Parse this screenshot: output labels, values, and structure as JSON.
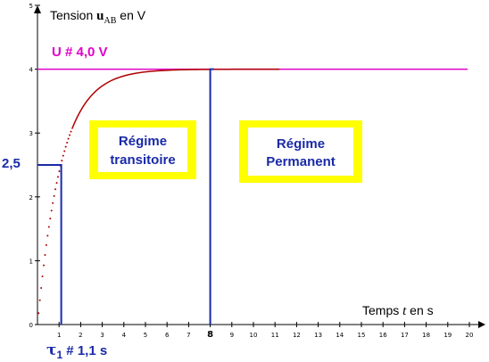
{
  "chart_data": {
    "type": "line",
    "y_axis": {
      "label_prefix": "Tension ",
      "label_var": "u",
      "label_sub": "AB",
      "label_suffix": " en V",
      "range": [
        0,
        5
      ],
      "ticks": [
        "0",
        "1",
        "2",
        "3",
        "4",
        "5"
      ]
    },
    "x_axis": {
      "label_prefix": "Temps ",
      "label_var": "t",
      "label_suffix": " en  s",
      "range": [
        0,
        20
      ],
      "ticks": [
        "1",
        "2",
        "3",
        "4",
        "5",
        "6",
        "7",
        "8",
        "9",
        "10",
        "11",
        "12",
        "13",
        "14",
        "15",
        "16",
        "17",
        "18",
        "19",
        "20"
      ]
    },
    "curve": {
      "type": "charge",
      "asymptote": 4.0,
      "tau": 1.1,
      "x_end": 11.2,
      "color": "#b00000"
    },
    "asymptote_line": {
      "y": 4.0,
      "label": "U # 4,0 V",
      "color": "#e000c8"
    },
    "tau_marker": {
      "x": 1.1,
      "y": 2.5,
      "y_label": "2,5",
      "tau_symbol": "τ",
      "tau_sub": "1",
      "tau_value": " # 1,1 s",
      "color": "#1a2aa8"
    },
    "steady_marker": {
      "x": 8,
      "label": "8"
    },
    "regions": [
      {
        "line1": "Régime",
        "line2": "transitoire"
      },
      {
        "line1": "Régime",
        "line2": "Permanent"
      }
    ]
  }
}
